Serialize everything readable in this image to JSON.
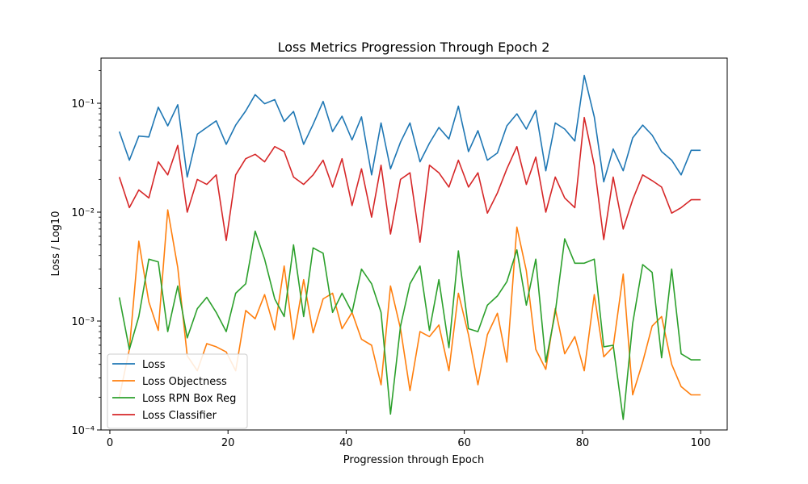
{
  "chart_data": {
    "type": "line",
    "title": "Loss Metrics Progression Through Epoch 2",
    "xlabel": "Progression through Epoch",
    "ylabel": "Loss / Log10",
    "xlim": [
      -1.5,
      104.5
    ],
    "ylim": [
      0.0001,
      0.26
    ],
    "yscale": "log",
    "x_ticks": [
      0,
      20,
      40,
      60,
      80,
      100
    ],
    "x_tick_labels": [
      "0",
      "20",
      "40",
      "60",
      "80",
      "100"
    ],
    "y_ticks": [
      0.0001,
      0.001,
      0.01,
      0.1
    ],
    "y_tick_labels": [
      "10⁻⁴",
      "10⁻³",
      "10⁻²",
      "10⁻¹"
    ],
    "grid": false,
    "legend_position": "lower-left",
    "x": [
      1.6,
      3.3,
      4.9,
      6.6,
      8.2,
      9.8,
      11.5,
      13.1,
      14.8,
      16.4,
      18.0,
      19.7,
      21.3,
      23.0,
      24.6,
      26.2,
      27.9,
      29.5,
      31.1,
      32.8,
      34.4,
      36.1,
      37.7,
      39.3,
      41.0,
      42.6,
      44.3,
      45.9,
      47.5,
      49.2,
      50.8,
      52.5,
      54.1,
      55.7,
      57.4,
      59.0,
      60.7,
      62.3,
      63.9,
      65.6,
      67.2,
      68.9,
      70.5,
      72.1,
      73.8,
      75.4,
      77.0,
      78.7,
      80.3,
      82.0,
      83.6,
      85.2,
      86.9,
      88.5,
      90.2,
      91.8,
      93.4,
      95.1,
      96.7,
      98.4,
      100.0
    ],
    "series": [
      {
        "name": "Loss",
        "color": "#1f77b4",
        "values": [
          0.055,
          0.03,
          0.05,
          0.049,
          0.092,
          0.062,
          0.097,
          0.021,
          0.052,
          0.06,
          0.069,
          0.042,
          0.063,
          0.085,
          0.12,
          0.099,
          0.108,
          0.068,
          0.084,
          0.042,
          0.064,
          0.104,
          0.055,
          0.076,
          0.046,
          0.075,
          0.022,
          0.066,
          0.025,
          0.044,
          0.066,
          0.029,
          0.043,
          0.06,
          0.047,
          0.094,
          0.036,
          0.056,
          0.03,
          0.035,
          0.062,
          0.08,
          0.058,
          0.086,
          0.024,
          0.066,
          0.058,
          0.045,
          0.18,
          0.075,
          0.019,
          0.038,
          0.024,
          0.048,
          0.063,
          0.051,
          0.036,
          0.03,
          0.022,
          0.037,
          0.037
        ]
      },
      {
        "name": "Loss Objectness",
        "color": "#ff7f0e",
        "values": [
          0.0002,
          0.00055,
          0.0054,
          0.0015,
          0.00082,
          0.0105,
          0.0031,
          0.00048,
          0.00035,
          0.00062,
          0.00058,
          0.00052,
          0.00035,
          0.00125,
          0.00105,
          0.00175,
          0.00083,
          0.0032,
          0.00068,
          0.0024,
          0.00078,
          0.0016,
          0.0018,
          0.00085,
          0.0012,
          0.00068,
          0.0006,
          0.00026,
          0.0021,
          0.00085,
          0.00023,
          0.0008,
          0.00072,
          0.00092,
          0.00035,
          0.0018,
          0.00075,
          0.00026,
          0.00075,
          0.00118,
          0.00042,
          0.0073,
          0.0029,
          0.00055,
          0.00036,
          0.0013,
          0.0005,
          0.00072,
          0.00035,
          0.00175,
          0.00047,
          0.00058,
          0.0027,
          0.00021,
          0.00042,
          0.0009,
          0.0011,
          0.0004,
          0.00025,
          0.00021,
          0.00021
        ]
      },
      {
        "name": "Loss RPN Box Reg",
        "color": "#2ca02c",
        "values": [
          0.00165,
          0.00055,
          0.0011,
          0.0037,
          0.0035,
          0.0008,
          0.0021,
          0.0007,
          0.0013,
          0.00165,
          0.0012,
          0.0008,
          0.0018,
          0.0022,
          0.0067,
          0.0037,
          0.0016,
          0.0011,
          0.005,
          0.0011,
          0.0047,
          0.0042,
          0.0012,
          0.0018,
          0.0012,
          0.003,
          0.0022,
          0.0012,
          0.00014,
          0.0009,
          0.0022,
          0.0032,
          0.00082,
          0.0024,
          0.00057,
          0.0044,
          0.00085,
          0.0008,
          0.0014,
          0.0017,
          0.0023,
          0.0045,
          0.0014,
          0.0037,
          0.00042,
          0.0012,
          0.0057,
          0.0034,
          0.0034,
          0.0037,
          0.00058,
          0.0006,
          0.000125,
          0.00095,
          0.0033,
          0.0028,
          0.00046,
          0.003,
          0.0005,
          0.00044,
          0.00044
        ]
      },
      {
        "name": "Loss Classifier",
        "color": "#d62728",
        "values": [
          0.021,
          0.011,
          0.016,
          0.0135,
          0.029,
          0.022,
          0.041,
          0.01,
          0.02,
          0.018,
          0.022,
          0.0055,
          0.022,
          0.031,
          0.034,
          0.029,
          0.04,
          0.036,
          0.021,
          0.018,
          0.022,
          0.03,
          0.017,
          0.031,
          0.0115,
          0.025,
          0.009,
          0.027,
          0.0063,
          0.02,
          0.023,
          0.0053,
          0.027,
          0.023,
          0.017,
          0.03,
          0.017,
          0.023,
          0.0098,
          0.015,
          0.025,
          0.04,
          0.018,
          0.032,
          0.01,
          0.021,
          0.0135,
          0.011,
          0.074,
          0.027,
          0.0056,
          0.021,
          0.007,
          0.013,
          0.022,
          0.0195,
          0.017,
          0.0098,
          0.011,
          0.013,
          0.013
        ]
      }
    ]
  }
}
